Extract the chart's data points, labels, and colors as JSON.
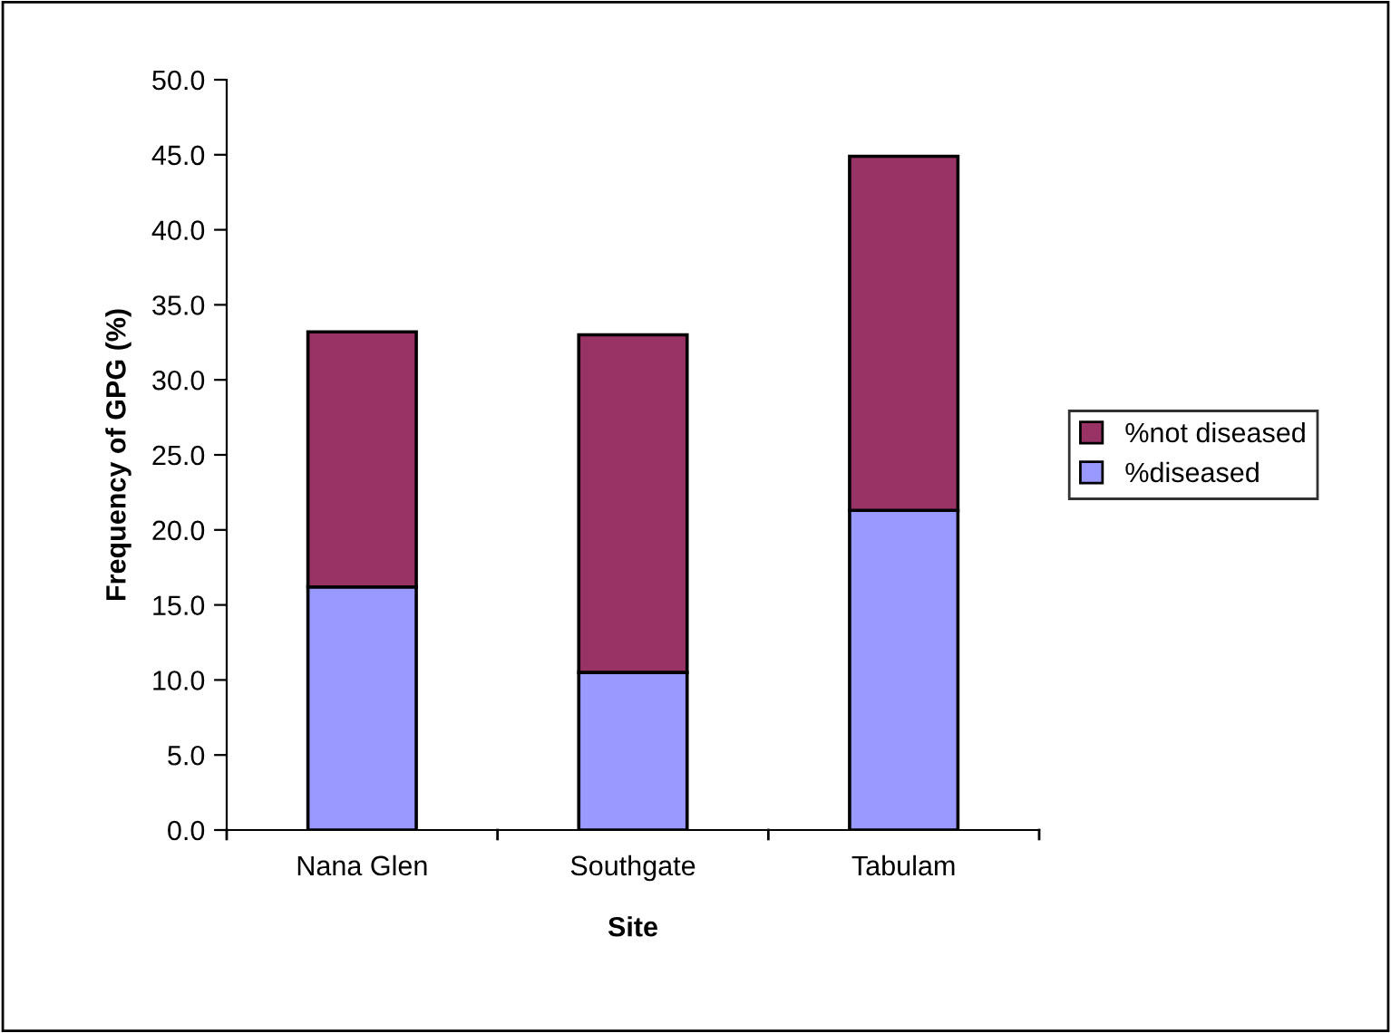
{
  "chart_data": {
    "type": "bar",
    "stacked": true,
    "xlabel": "Site",
    "ylabel": "Frequency of GPG (%)",
    "categories": [
      "Nana Glen",
      "Southgate",
      "Tabulam"
    ],
    "series": [
      {
        "name": "%diseased",
        "color": "#9999ff",
        "values": [
          16.2,
          10.5,
          21.3
        ]
      },
      {
        "name": "%not diseased",
        "color": "#993366",
        "values": [
          17.0,
          22.5,
          23.6
        ]
      }
    ],
    "ylim": [
      0,
      50
    ],
    "yticks": [
      {
        "value": 0,
        "label": "0.0"
      },
      {
        "value": 5,
        "label": "5.0"
      },
      {
        "value": 10,
        "label": "10.0"
      },
      {
        "value": 15,
        "label": "15.0"
      },
      {
        "value": 20,
        "label": "20.0"
      },
      {
        "value": 25,
        "label": "25.0"
      },
      {
        "value": 30,
        "label": "30.0"
      },
      {
        "value": 35,
        "label": "35.0"
      },
      {
        "value": 40,
        "label": "40.0"
      },
      {
        "value": 45,
        "label": "45.0"
      },
      {
        "value": 50,
        "label": "50.0"
      }
    ],
    "grid": false,
    "legend": "right"
  }
}
